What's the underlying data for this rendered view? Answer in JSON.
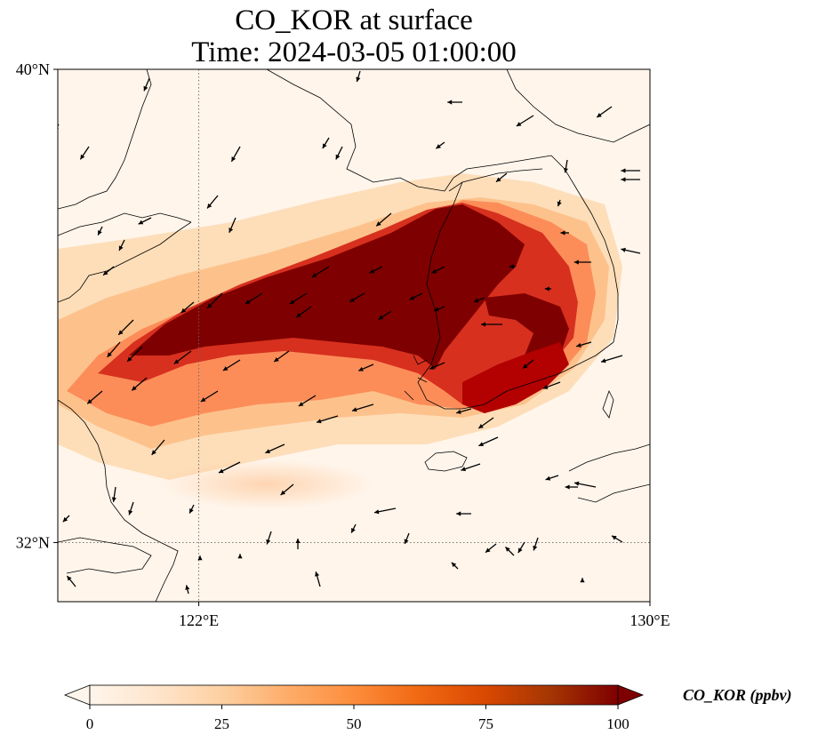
{
  "title": {
    "line1": "CO_KOR at surface",
    "line2": "Time: 2024-03-05 01:00:00"
  },
  "map": {
    "lon_range": [
      119.5,
      130
    ],
    "lat_range": [
      31,
      40
    ],
    "lat_ticks": [
      {
        "value": 40,
        "label": "40°N"
      },
      {
        "value": 32,
        "label": "32°N"
      }
    ],
    "lon_ticks": [
      {
        "value": 122,
        "label": "122°E"
      },
      {
        "value": 130,
        "label": "130°E"
      }
    ],
    "gridlines": {
      "lon": [
        122
      ],
      "lat": [
        32
      ]
    },
    "field": {
      "variable": "CO_KOR",
      "units": "ppbv",
      "plume_axis": [
        [
          119.6,
          33.8
        ],
        [
          121.5,
          35.0
        ],
        [
          123.5,
          36.0
        ],
        [
          125.5,
          36.8
        ],
        [
          126.8,
          36.7
        ]
      ],
      "colors": {
        "low": "#fff5eb",
        "mid": "#fdae6b",
        "high": "#7f0000"
      }
    }
  },
  "colorbar": {
    "label": "CO_KOR (ppbv)",
    "min": 0,
    "max": 100,
    "ticks": [
      {
        "value": 0,
        "label": "0"
      },
      {
        "value": 25,
        "label": "25"
      },
      {
        "value": 50,
        "label": "50"
      },
      {
        "value": 75,
        "label": "75"
      },
      {
        "value": 100,
        "label": "100"
      }
    ],
    "extend": "both",
    "colormap": [
      "#fff5eb",
      "#fee6ce",
      "#fdd0a2",
      "#fdae6b",
      "#fd8d3c",
      "#f16913",
      "#d94801",
      "#a63603",
      "#7f0000"
    ]
  }
}
